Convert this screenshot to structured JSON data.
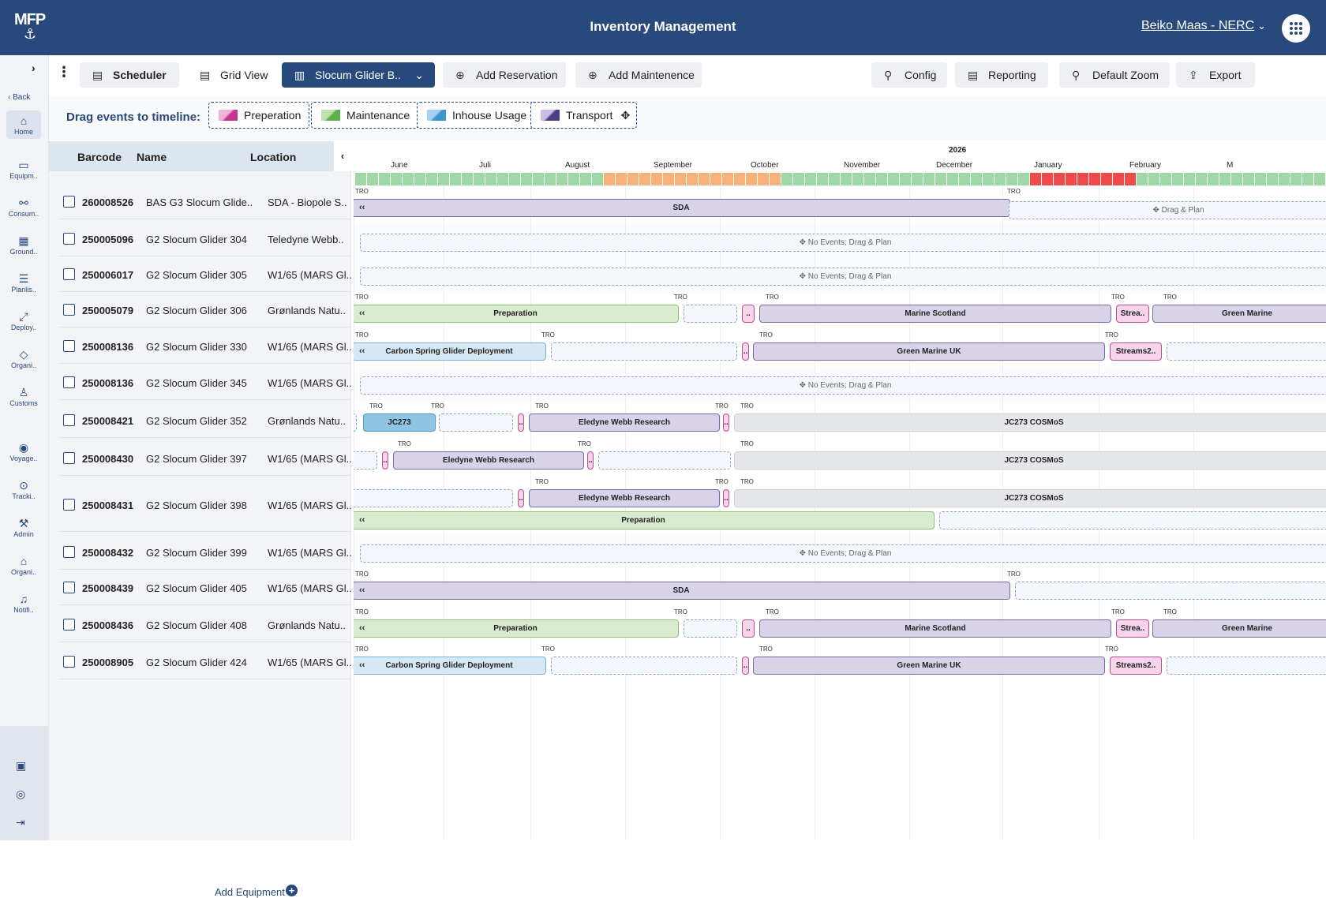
{
  "header": {
    "logo": "MFP",
    "title": "Inventory Management",
    "user": "Beiko Maas - NERC",
    "apps_icon": "grid-dots-icon"
  },
  "sidebar": {
    "back": "Back",
    "items": [
      {
        "label": "Home",
        "icon": "home-icon"
      },
      {
        "label": "Equipm..",
        "icon": "briefcase-icon"
      },
      {
        "label": "Consum..",
        "icon": "consumables-icon"
      },
      {
        "label": "Ground..",
        "icon": "grid-icon"
      },
      {
        "label": "Planlis..",
        "icon": "list-icon"
      },
      {
        "label": "Deploy..",
        "icon": "expand-icon"
      },
      {
        "label": "Organi..",
        "icon": "tag-icon"
      },
      {
        "label": "Customs",
        "icon": "customs-icon"
      },
      {
        "label": "Voyage..",
        "icon": "globe-icon"
      },
      {
        "label": "Tracki..",
        "icon": "tracking-icon"
      },
      {
        "label": "Admin",
        "icon": "gavel-icon"
      },
      {
        "label": "Organi..",
        "icon": "bank-icon"
      },
      {
        "label": "Notifi..",
        "icon": "bell-icon"
      }
    ]
  },
  "toolbar": {
    "scheduler": "Scheduler",
    "grid_view": "Grid View",
    "glider_select": "Slocum Glider  B..",
    "add_reservation": "Add Reservation",
    "add_maintenance": "Add Maintenence",
    "config": "Config",
    "reporting": "Reporting",
    "default_zoom": "Default Zoom",
    "export": "Export"
  },
  "drag_bar": {
    "label": "Drag events to timeline:",
    "chips": [
      {
        "label": "Preperation",
        "color": "#c2368f"
      },
      {
        "label": "Maintenance",
        "color": "#5fb04b"
      },
      {
        "label": "Inhouse Usage",
        "color": "#3d95cf"
      },
      {
        "label": "Transport",
        "color": "#4c3c86"
      }
    ]
  },
  "table": {
    "columns": [
      "Barcode",
      "Name",
      "Location"
    ],
    "rows": [
      {
        "barcode": "260008526",
        "name": "BAS G3 Slocum Glide..",
        "location": "SDA - Biopole S.."
      },
      {
        "barcode": "250005096",
        "name": "G2 Slocum Glider 304",
        "location": "Teledyne Webb.."
      },
      {
        "barcode": "250006017",
        "name": "G2 Slocum Glider 305",
        "location": "W1/65 (MARS Gl.."
      },
      {
        "barcode": "250005079",
        "name": "G2 Slocum Glider 306",
        "location": "Grønlands Natu.."
      },
      {
        "barcode": "250008136",
        "name": "G2 Slocum Glider 330",
        "location": "W1/65 (MARS Gl.."
      },
      {
        "barcode": "250008136",
        "name": "G2 Slocum Glider 345",
        "location": "W1/65 (MARS Gl.."
      },
      {
        "barcode": "250008421",
        "name": "G2 Slocum Glider 352",
        "location": "Grønlands Natu.."
      },
      {
        "barcode": "250008430",
        "name": "G2 Slocum Glider 397",
        "location": "W1/65 (MARS Gl.."
      },
      {
        "barcode": "250008431",
        "name": "G2 Slocum Glider 398",
        "location": "W1/65 (MARS Gl.."
      },
      {
        "barcode": "250008432",
        "name": "G2 Slocum Glider 399",
        "location": "W1/65 (MARS Gl.."
      },
      {
        "barcode": "250008439",
        "name": "G2 Slocum Glider 405",
        "location": "W1/65 (MARS Gl.."
      },
      {
        "barcode": "250008436",
        "name": "G2 Slocum Glider 408",
        "location": "Grønlands Natu.."
      },
      {
        "barcode": "250008905",
        "name": "G2 Slocum Glider 424",
        "location": "W1/65 (MARS Gl.."
      }
    ],
    "add_equipment": "Add Equipment"
  },
  "timeline": {
    "year": "2026",
    "months": [
      "June",
      "Juli",
      "August",
      "September",
      "October",
      "November",
      "December",
      "January",
      "February",
      "M"
    ],
    "tro": "TRO",
    "no_events_hint": "No Events; Drag & Plan",
    "drag_plan_hint": "Drag & Plan",
    "status_colors": {
      "ok": "#9fd8a6",
      "warn": "#f7b27a",
      "alert": "#ef4a4a"
    },
    "events": {
      "sda": "SDA",
      "preparation": "Preparation",
      "marine_scotland": "Marine Scotland",
      "strea": "Strea..",
      "green_marine": "Green Marine",
      "carbon_spring": "Carbon Spring Glider Deployment",
      "green_marine_uk": "Green Marine UK",
      "streams2": "Streams2..",
      "jc273": "JC273",
      "eledyne": "Eledyne Webb Research",
      "jc273_cosmos": "JC273 COSMoS",
      "ellipsis": ".."
    }
  }
}
